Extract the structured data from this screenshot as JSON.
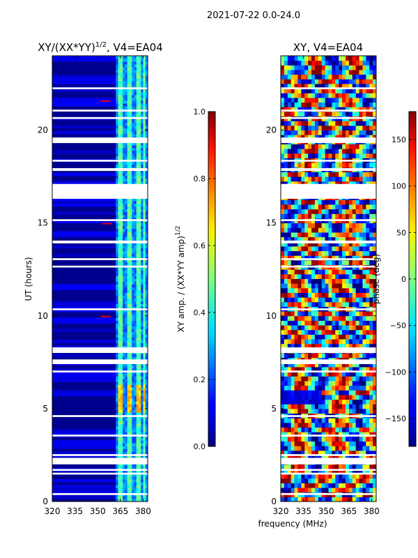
{
  "figure": {
    "suptitle": "2021-07-22 0.0-24.0",
    "shared_xlabel": "frequency (MHz)"
  },
  "chart_data": [
    {
      "type": "heatmap",
      "title_main": "XY/(XX*YY)",
      "title_exp": "1/2",
      "title_suffix": ", V4=EA04",
      "ylabel": "UT (hours)",
      "xlim": [
        320,
        383
      ],
      "ylim": [
        0,
        24
      ],
      "xticks": [
        {
          "value": 320,
          "label": "320"
        },
        {
          "value": 335,
          "label": "335"
        },
        {
          "value": 350,
          "label": "350"
        },
        {
          "value": 365,
          "label": "365"
        },
        {
          "value": 380,
          "label": "380"
        }
      ],
      "yticks": [
        {
          "value": 0,
          "label": "0"
        },
        {
          "value": 5,
          "label": "5"
        },
        {
          "value": 10,
          "label": "10"
        },
        {
          "value": 15,
          "label": "15"
        },
        {
          "value": 20,
          "label": "20"
        }
      ],
      "gaps_hours": [
        [
          0.35,
          0.45
        ],
        [
          1.45,
          1.55
        ],
        [
          1.65,
          1.75
        ],
        [
          2.0,
          2.35
        ],
        [
          2.45,
          2.55
        ],
        [
          3.5,
          3.6
        ],
        [
          4.55,
          4.65
        ],
        [
          6.95,
          7.05
        ],
        [
          7.4,
          7.65
        ],
        [
          8.0,
          8.3
        ],
        [
          10.3,
          10.4
        ],
        [
          12.6,
          12.7
        ],
        [
          13.0,
          13.1
        ],
        [
          13.9,
          14.05
        ],
        [
          15.1,
          15.2
        ],
        [
          16.3,
          17.1
        ],
        [
          17.8,
          17.95
        ],
        [
          18.3,
          18.4
        ],
        [
          19.3,
          19.6
        ],
        [
          20.6,
          20.7
        ],
        [
          21.0,
          21.1
        ],
        [
          22.2,
          22.3
        ]
      ],
      "colorbar": {
        "label_main": "XY amp. / (XX*YY amp)",
        "label_exp": "1/2",
        "range": [
          0.0,
          1.0
        ],
        "ticks": [
          "0.0",
          "0.2",
          "0.4",
          "0.6",
          "0.8",
          "1.0"
        ],
        "tick_values": [
          0.0,
          0.2,
          0.4,
          0.6,
          0.8,
          1.0
        ]
      }
    },
    {
      "type": "heatmap",
      "title": "XY, V4=EA04",
      "xlim": [
        320,
        383
      ],
      "ylim": [
        0,
        24
      ],
      "xticks": [
        {
          "value": 320,
          "label": "320"
        },
        {
          "value": 335,
          "label": "335"
        },
        {
          "value": 350,
          "label": "350"
        },
        {
          "value": 365,
          "label": "365"
        },
        {
          "value": 380,
          "label": "380"
        }
      ],
      "yticks": [
        {
          "value": 0,
          "label": "0"
        },
        {
          "value": 5,
          "label": "5"
        },
        {
          "value": 10,
          "label": "10"
        },
        {
          "value": 15,
          "label": "15"
        },
        {
          "value": 20,
          "label": "20"
        }
      ],
      "gaps_hours": [
        [
          0.35,
          0.45
        ],
        [
          1.45,
          1.55
        ],
        [
          1.65,
          1.75
        ],
        [
          2.0,
          2.35
        ],
        [
          2.45,
          2.55
        ],
        [
          3.5,
          3.6
        ],
        [
          4.55,
          4.65
        ],
        [
          6.95,
          7.05
        ],
        [
          7.4,
          7.65
        ],
        [
          8.0,
          8.3
        ],
        [
          10.3,
          10.4
        ],
        [
          12.6,
          12.7
        ],
        [
          13.0,
          13.1
        ],
        [
          13.9,
          14.05
        ],
        [
          15.1,
          15.2
        ],
        [
          16.3,
          17.1
        ],
        [
          17.8,
          17.95
        ],
        [
          18.3,
          18.4
        ],
        [
          19.3,
          19.6
        ],
        [
          20.6,
          20.7
        ],
        [
          21.0,
          21.1
        ],
        [
          22.2,
          22.3
        ]
      ],
      "colorbar": {
        "label": "phase (deg)",
        "range": [
          -180,
          180
        ],
        "ticks": [
          "−150",
          "−100",
          "−50",
          "0",
          "50",
          "100",
          "150"
        ],
        "tick_values": [
          -150,
          -100,
          -50,
          0,
          50,
          100,
          150
        ]
      }
    }
  ]
}
